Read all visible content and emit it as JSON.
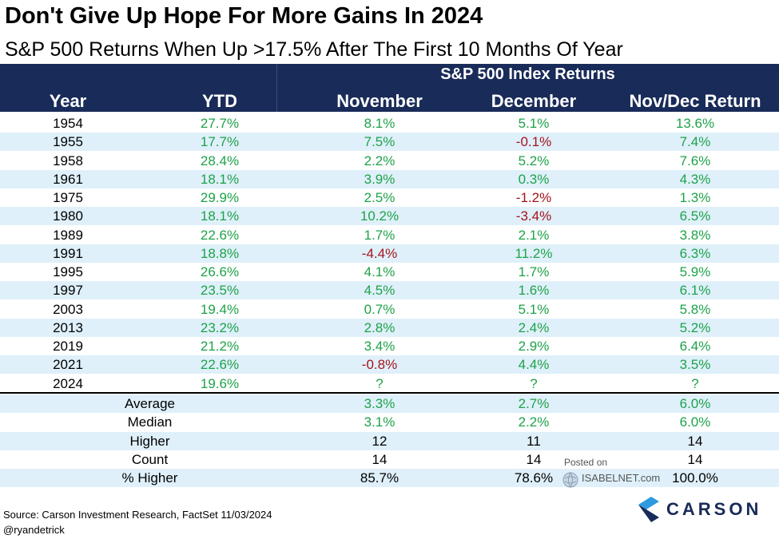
{
  "title": "Don't Give Up Hope For More Gains In 2024",
  "subtitle": "S&P 500 Returns When Up >17.5% After The First 10 Months Of Year",
  "header": {
    "group": "S&P 500 Index Returns",
    "columns": [
      "Year",
      "YTD",
      "November",
      "December",
      "Nov/Dec Return"
    ]
  },
  "chart_data": {
    "type": "table",
    "title": "Don't Give Up Hope For More Gains In 2024",
    "subtitle": "S&P 500 Returns When Up >17.5% After The First 10 Months Of Year",
    "columns": [
      "Year",
      "YTD",
      "November",
      "December",
      "Nov/Dec Return"
    ],
    "rows": [
      [
        "1954",
        "27.7%",
        "8.1%",
        "5.1%",
        "13.6%"
      ],
      [
        "1955",
        "17.7%",
        "7.5%",
        "-0.1%",
        "7.4%"
      ],
      [
        "1958",
        "28.4%",
        "2.2%",
        "5.2%",
        "7.6%"
      ],
      [
        "1961",
        "18.1%",
        "3.9%",
        "0.3%",
        "4.3%"
      ],
      [
        "1975",
        "29.9%",
        "2.5%",
        "-1.2%",
        "1.3%"
      ],
      [
        "1980",
        "18.1%",
        "10.2%",
        "-3.4%",
        "6.5%"
      ],
      [
        "1989",
        "22.6%",
        "1.7%",
        "2.1%",
        "3.8%"
      ],
      [
        "1991",
        "18.8%",
        "-4.4%",
        "11.2%",
        "6.3%"
      ],
      [
        "1995",
        "26.6%",
        "4.1%",
        "1.7%",
        "5.9%"
      ],
      [
        "1997",
        "23.5%",
        "4.5%",
        "1.6%",
        "6.1%"
      ],
      [
        "2003",
        "19.4%",
        "0.7%",
        "5.1%",
        "5.8%"
      ],
      [
        "2013",
        "23.2%",
        "2.8%",
        "2.4%",
        "5.2%"
      ],
      [
        "2019",
        "21.2%",
        "3.4%",
        "2.9%",
        "6.4%"
      ],
      [
        "2021",
        "22.6%",
        "-0.8%",
        "4.4%",
        "3.5%"
      ],
      [
        "2024",
        "19.6%",
        "?",
        "?",
        "?"
      ]
    ],
    "summary": [
      [
        "Average",
        "3.3%",
        "2.7%",
        "6.0%"
      ],
      [
        "Median",
        "3.1%",
        "2.2%",
        "6.0%"
      ],
      [
        "Higher",
        "12",
        "11",
        "14"
      ],
      [
        "Count",
        "14",
        "14",
        "14"
      ],
      [
        "% Higher",
        "85.7%",
        "78.6%",
        "100.0%"
      ]
    ]
  },
  "colors": {
    "header_bg": "#192b58",
    "positive": "#1ea24a",
    "negative": "#a4141c",
    "shade": "#dff0fa"
  },
  "footer": {
    "source": "Source: Carson Investment Research, FactSet 11/03/2024",
    "handle": "@ryandetrick",
    "logo": "CARSON",
    "watermark_posted": "Posted on",
    "watermark_site": "ISABELNET.com"
  }
}
